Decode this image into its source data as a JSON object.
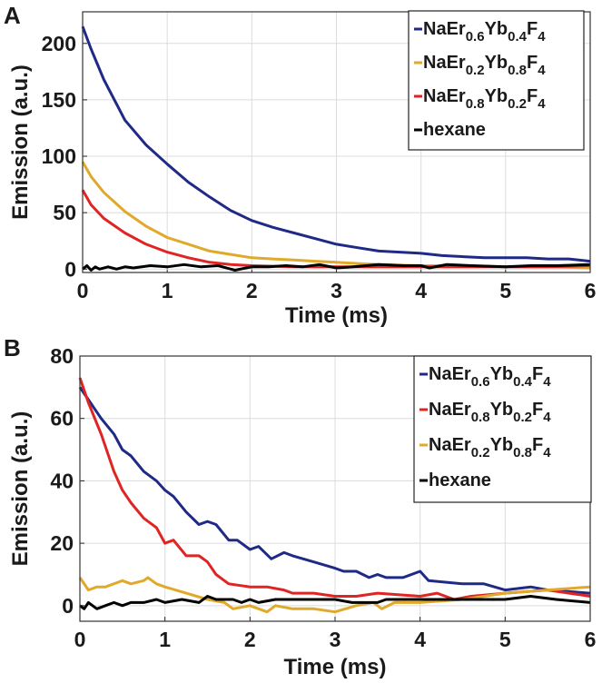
{
  "chart_data": [
    {
      "panel_label": "A",
      "type": "line",
      "xlabel": "Time (ms)",
      "ylabel": "Emission (a.u.)",
      "xlim": [
        0,
        6
      ],
      "ylim": [
        -3,
        228
      ],
      "xticks": [
        0,
        1,
        2,
        3,
        4,
        5,
        6
      ],
      "yticks": [
        0,
        50,
        100,
        150,
        200
      ],
      "grid": true,
      "legend_position": "top-right",
      "series": [
        {
          "name": "NaEr0.6Yb0.4F4",
          "color": "#1f2a87",
          "x": [
            0,
            0.1,
            0.25,
            0.5,
            0.75,
            1,
            1.25,
            1.5,
            1.75,
            2,
            2.25,
            2.5,
            2.75,
            3,
            3.25,
            3.5,
            3.75,
            4,
            4.25,
            4.5,
            4.75,
            5,
            5.25,
            5.5,
            5.75,
            6
          ],
          "y": [
            215,
            195,
            168,
            132,
            110,
            93,
            77,
            64,
            52,
            43,
            37,
            32,
            27,
            22,
            19,
            16,
            15,
            14,
            12,
            11,
            10,
            10,
            10,
            9,
            9,
            7
          ]
        },
        {
          "name": "NaEr0.2Yb0.8F4",
          "color": "#e0a92b",
          "x": [
            0,
            0.1,
            0.25,
            0.5,
            0.75,
            1,
            1.25,
            1.5,
            1.75,
            2,
            2.25,
            2.5,
            2.75,
            3,
            3.25,
            3.5,
            4,
            4.5,
            5,
            5.5,
            6
          ],
          "y": [
            95,
            82,
            68,
            51,
            38,
            28,
            22,
            16,
            13,
            10,
            9,
            8,
            7,
            6,
            5,
            4,
            3,
            3,
            2,
            2,
            1
          ]
        },
        {
          "name": "NaEr0.8Yb0.2F4",
          "color": "#e02424",
          "x": [
            0,
            0.1,
            0.25,
            0.5,
            0.75,
            1,
            1.25,
            1.5,
            1.75,
            2,
            2.5,
            3,
            3.5,
            4,
            4.5,
            5,
            5.5,
            6
          ],
          "y": [
            70,
            57,
            45,
            32,
            22,
            15,
            10,
            6,
            4,
            3,
            2,
            2,
            2,
            2,
            2,
            2,
            2,
            3
          ]
        },
        {
          "name": "hexane",
          "color": "#000000",
          "x": [
            0,
            0.05,
            0.1,
            0.15,
            0.2,
            0.3,
            0.4,
            0.5,
            0.6,
            0.7,
            0.8,
            1,
            1.2,
            1.4,
            1.6,
            1.8,
            2,
            2.2,
            2.4,
            2.6,
            2.8,
            3,
            3.2,
            3.5,
            3.8,
            4,
            4.1,
            4.3,
            4.6,
            5,
            5.3,
            5.6,
            6
          ],
          "y": [
            0,
            3,
            -1,
            2,
            0,
            2,
            0,
            2,
            1,
            2,
            3,
            2,
            4,
            2,
            3,
            -1,
            2,
            2,
            3,
            2,
            4,
            1,
            2,
            4,
            3,
            3,
            1,
            4,
            3,
            2,
            3,
            3,
            4
          ]
        }
      ]
    },
    {
      "panel_label": "B",
      "type": "line",
      "xlabel": "Time (ms)",
      "ylabel": "Emission (a.u.)",
      "xlim": [
        0,
        6
      ],
      "ylim": [
        -5,
        80
      ],
      "xticks": [
        0,
        1,
        2,
        3,
        4,
        5,
        6
      ],
      "yticks": [
        0,
        20,
        40,
        60,
        80
      ],
      "grid": true,
      "legend_position": "top-right",
      "series": [
        {
          "name": "NaEr0.6Yb0.4F4",
          "color": "#1f2a87",
          "x": [
            0,
            0.1,
            0.25,
            0.4,
            0.5,
            0.6,
            0.75,
            0.9,
            1,
            1.1,
            1.25,
            1.4,
            1.5,
            1.6,
            1.75,
            1.85,
            2,
            2.1,
            2.25,
            2.4,
            2.5,
            2.75,
            3,
            3.1,
            3.25,
            3.4,
            3.5,
            3.6,
            3.8,
            4,
            4.1,
            4.5,
            4.75,
            5,
            5.3,
            5.5,
            6
          ],
          "y": [
            70,
            66,
            60,
            55,
            50,
            48,
            43,
            40,
            37,
            35,
            30,
            26,
            27,
            26,
            21,
            21,
            18,
            19,
            15,
            17,
            16,
            14,
            12,
            11,
            11,
            9,
            10,
            9,
            9,
            11,
            8,
            7,
            7,
            5,
            6,
            5,
            4
          ]
        },
        {
          "name": "NaEr0.8Yb0.2F4",
          "color": "#e02424",
          "x": [
            0,
            0.1,
            0.25,
            0.4,
            0.5,
            0.6,
            0.75,
            0.9,
            1,
            1.1,
            1.25,
            1.4,
            1.5,
            1.6,
            1.75,
            2,
            2.2,
            2.4,
            2.5,
            2.75,
            3,
            3.25,
            3.5,
            4,
            4.2,
            4.4,
            4.6,
            5,
            5.5,
            6
          ],
          "y": [
            73,
            65,
            55,
            43,
            37,
            33,
            28,
            25,
            20,
            21,
            16,
            16,
            14,
            10,
            7,
            6,
            6,
            5,
            4,
            4,
            3,
            3,
            4,
            3,
            4,
            2,
            3,
            4,
            5,
            3
          ]
        },
        {
          "name": "NaEr0.2Yb0.8F4",
          "color": "#e0a92b",
          "x": [
            0,
            0.1,
            0.2,
            0.3,
            0.5,
            0.6,
            0.75,
            0.8,
            0.9,
            1,
            1.25,
            1.5,
            1.7,
            1.8,
            2,
            2.2,
            2.3,
            2.5,
            2.75,
            3,
            3.25,
            3.45,
            3.55,
            3.7,
            4,
            4.5,
            5,
            5.5,
            6
          ],
          "y": [
            9,
            5,
            6,
            6,
            8,
            7,
            8,
            9,
            7,
            6,
            4,
            2,
            1,
            -1,
            0,
            -2,
            0,
            -1,
            -1,
            -2,
            0,
            1,
            -1,
            1,
            1,
            2,
            4,
            5,
            6
          ]
        },
        {
          "name": "hexane",
          "color": "#000000",
          "x": [
            0,
            0.05,
            0.1,
            0.2,
            0.3,
            0.4,
            0.5,
            0.6,
            0.75,
            0.9,
            1,
            1.2,
            1.4,
            1.5,
            1.6,
            1.8,
            1.9,
            2,
            2.1,
            2.3,
            2.5,
            3,
            3.2,
            3.5,
            3.6,
            4,
            4.5,
            5,
            5.3,
            5.6,
            6
          ],
          "y": [
            0,
            -1,
            1,
            -1,
            0,
            1,
            0,
            1,
            1,
            2,
            1,
            2,
            1,
            3,
            2,
            2,
            1,
            2,
            1,
            2,
            2,
            2,
            1,
            1,
            2,
            2,
            2,
            2,
            3,
            2,
            1
          ]
        }
      ]
    }
  ]
}
